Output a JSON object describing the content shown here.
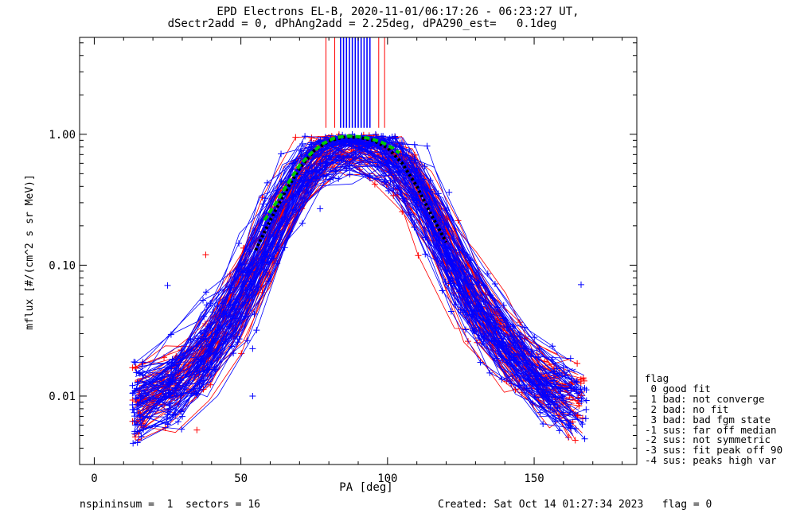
{
  "chart_data": {
    "type": "line",
    "title": "EPD Electrons EL-B, 2020-11-01/06:17:26 - 06:23:27 UT,",
    "subtitle": "dSectr2add = 0, dPhAng2add = 2.25deg, dPA290_est=   0.1deg",
    "xlabel": "PA [deg]",
    "ylabel": "mflux [#/(cm^2 s sr MeV)]",
    "xlim": [
      -5,
      185
    ],
    "ylim": [
      0.003,
      5.5
    ],
    "yscale": "log",
    "x_ticks": [
      0,
      50,
      100,
      150
    ],
    "y_ticks": [
      {
        "value": 0.01,
        "label": "0.01"
      },
      {
        "value": 0.1,
        "label": "0.10"
      },
      {
        "value": 1.0,
        "label": "1.00"
      }
    ],
    "series_colors": {
      "red": "#ff0000",
      "blue": "#0000ff",
      "green": "#00cc00",
      "black": "#000000"
    },
    "typical_profile": {
      "x": [
        14,
        20,
        30,
        40,
        50,
        55,
        60,
        65,
        70,
        75,
        80,
        85,
        90,
        95,
        100,
        105,
        110,
        115,
        120,
        125,
        130,
        140,
        150,
        160,
        166
      ],
      "y": [
        0.009,
        0.01,
        0.014,
        0.024,
        0.06,
        0.1,
        0.18,
        0.3,
        0.5,
        0.7,
        0.85,
        0.93,
        0.93,
        0.9,
        0.8,
        0.62,
        0.42,
        0.25,
        0.14,
        0.08,
        0.05,
        0.025,
        0.015,
        0.01,
        0.009
      ]
    },
    "fit_curve": {
      "x": [
        55,
        60,
        65,
        70,
        75,
        80,
        85,
        90,
        95,
        100,
        105,
        110,
        115,
        120
      ],
      "y": [
        0.13,
        0.22,
        0.36,
        0.55,
        0.75,
        0.89,
        0.95,
        0.95,
        0.9,
        0.79,
        0.6,
        0.4,
        0.24,
        0.15
      ]
    },
    "green_curve": {
      "x": [
        58,
        62,
        66,
        70,
        74,
        78,
        82,
        86,
        90,
        94,
        98,
        102,
        104
      ],
      "y": [
        0.22,
        0.3,
        0.42,
        0.58,
        0.72,
        0.85,
        0.94,
        0.97,
        0.96,
        0.93,
        0.87,
        0.78,
        0.72
      ]
    },
    "outlier_points": [
      {
        "x": 77,
        "y": 0.27,
        "color": "blue"
      },
      {
        "x": 54,
        "y": 0.023,
        "color": "blue"
      },
      {
        "x": 54,
        "y": 0.01,
        "color": "blue"
      },
      {
        "x": 25,
        "y": 0.07,
        "color": "blue"
      },
      {
        "x": 166,
        "y": 0.071,
        "color": "blue"
      },
      {
        "x": 121,
        "y": 0.36,
        "color": "blue"
      },
      {
        "x": 102,
        "y": 0.34,
        "color": "red"
      },
      {
        "x": 38,
        "y": 0.12,
        "color": "red"
      },
      {
        "x": 35,
        "y": 0.0055,
        "color": "red"
      }
    ],
    "vertical_lines": {
      "red_x": [
        79,
        82,
        97,
        99
      ],
      "blue_x": [
        84,
        85,
        86,
        87,
        88,
        89,
        90,
        91,
        92,
        93,
        94
      ]
    }
  },
  "legend": {
    "title": "flag",
    "items": [
      " 0 good fit",
      " 1 bad: not converge",
      " 2 bad: no fit",
      " 3 bad: bad fgm state",
      "-1 sus: far off median",
      "-2 sus: not symmetric",
      "-3 sus: fit peak off 90",
      "-4 sus: peaks high var"
    ]
  },
  "footer": {
    "left": "nspininsum =  1  sectors = 16",
    "right": "Created: Sat Oct 14 01:27:34 2023   flag = 0"
  }
}
